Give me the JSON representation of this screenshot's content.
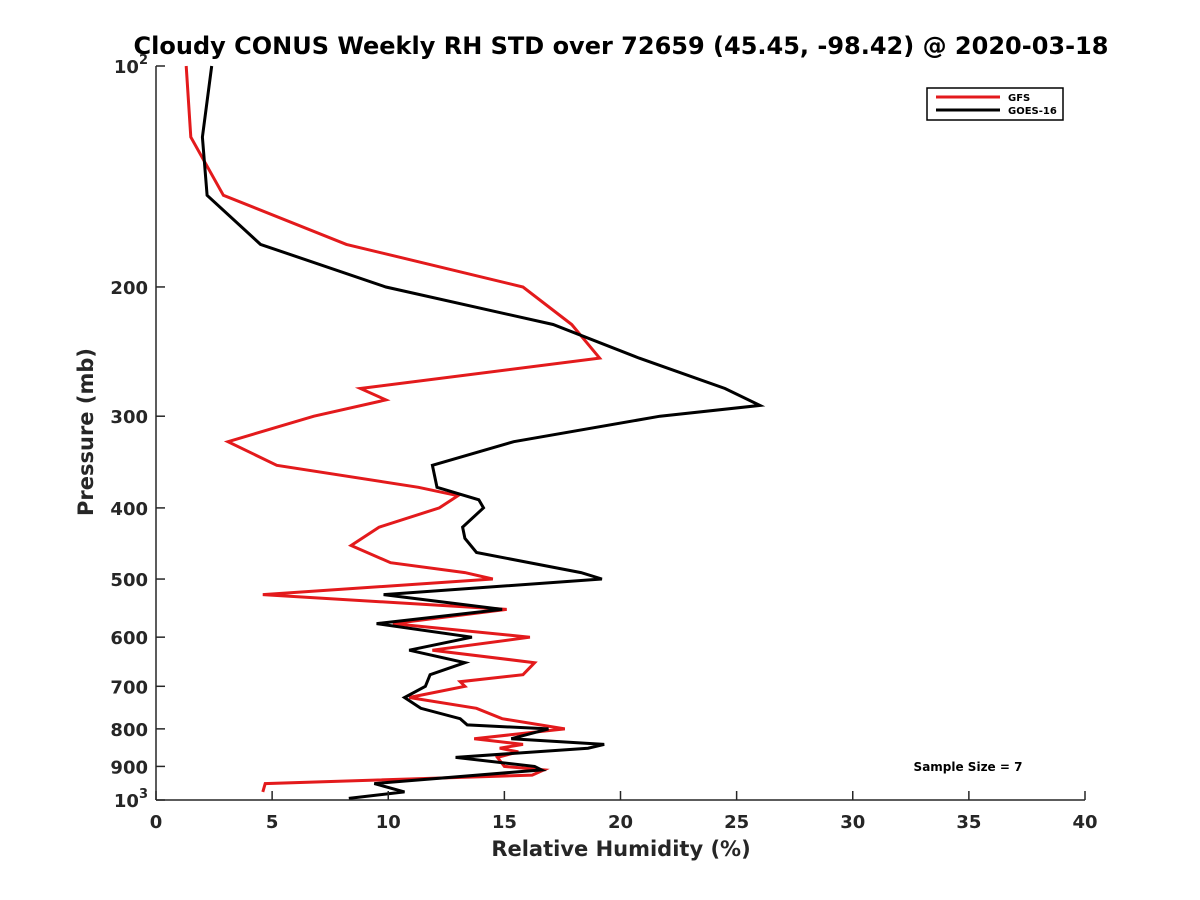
{
  "chart_data": {
    "type": "line",
    "title": "Cloudy CONUS Weekly RH STD over 72659 (45.45, -98.42) @ 2020-03-18",
    "xlabel": "Relative Humidity (%)",
    "ylabel": "Pressure (mb)",
    "xlim": [
      0,
      40
    ],
    "ylim": [
      100,
      1000
    ],
    "y_scale": "log",
    "y_reversed": true,
    "grid": false,
    "legend_position": "top-right",
    "x_ticks": [
      "0",
      "5",
      "10",
      "15",
      "20",
      "25",
      "30",
      "35",
      "40"
    ],
    "y_ticks": [
      {
        "value": 100,
        "base": "10",
        "exp": "2"
      },
      {
        "value": 200,
        "label": "200"
      },
      {
        "value": 300,
        "label": "300"
      },
      {
        "value": 400,
        "label": "400"
      },
      {
        "value": 500,
        "label": "500"
      },
      {
        "value": 600,
        "label": "600"
      },
      {
        "value": 700,
        "label": "700"
      },
      {
        "value": 800,
        "label": "800"
      },
      {
        "value": 900,
        "label": "900"
      },
      {
        "value": 1000,
        "base": "10",
        "exp": "3"
      }
    ],
    "annotation": "Sample Size = 7",
    "series": [
      {
        "name": "GFS",
        "color": "#e31a1c",
        "points": [
          [
            1.3,
            100
          ],
          [
            1.5,
            125
          ],
          [
            2.9,
            150
          ],
          [
            8.2,
            175
          ],
          [
            15.8,
            200
          ],
          [
            17.9,
            225
          ],
          [
            19.1,
            250
          ],
          [
            8.8,
            275
          ],
          [
            9.9,
            285
          ],
          [
            6.8,
            300
          ],
          [
            3.1,
            325
          ],
          [
            5.2,
            350
          ],
          [
            11.3,
            375
          ],
          [
            13.0,
            385
          ],
          [
            12.2,
            400
          ],
          [
            9.6,
            425
          ],
          [
            8.4,
            450
          ],
          [
            10.1,
            475
          ],
          [
            13.3,
            490
          ],
          [
            14.5,
            500
          ],
          [
            4.6,
            525
          ],
          [
            15.1,
            550
          ],
          [
            10.2,
            575
          ],
          [
            16.1,
            600
          ],
          [
            11.9,
            625
          ],
          [
            16.3,
            650
          ],
          [
            15.8,
            675
          ],
          [
            13.1,
            690
          ],
          [
            13.3,
            700
          ],
          [
            10.9,
            725
          ],
          [
            13.8,
            750
          ],
          [
            14.9,
            775
          ],
          [
            17.6,
            800
          ],
          [
            13.7,
            825
          ],
          [
            15.8,
            840
          ],
          [
            14.8,
            850
          ],
          [
            15.6,
            860
          ],
          [
            14.7,
            875
          ],
          [
            15.0,
            900
          ],
          [
            16.7,
            910
          ],
          [
            16.2,
            925
          ],
          [
            4.7,
            950
          ],
          [
            4.6,
            975
          ]
        ]
      },
      {
        "name": "GOES-16",
        "color": "#000000",
        "points": [
          [
            2.4,
            100
          ],
          [
            2.0,
            125
          ],
          [
            2.2,
            150
          ],
          [
            4.5,
            175
          ],
          [
            9.9,
            200
          ],
          [
            17.1,
            225
          ],
          [
            20.8,
            250
          ],
          [
            24.5,
            275
          ],
          [
            26.0,
            290
          ],
          [
            21.7,
            300
          ],
          [
            15.4,
            325
          ],
          [
            11.9,
            350
          ],
          [
            12.1,
            375
          ],
          [
            13.9,
            390
          ],
          [
            14.1,
            400
          ],
          [
            13.2,
            425
          ],
          [
            13.3,
            440
          ],
          [
            13.8,
            460
          ],
          [
            18.3,
            490
          ],
          [
            19.2,
            500
          ],
          [
            9.8,
            525
          ],
          [
            14.9,
            550
          ],
          [
            9.5,
            575
          ],
          [
            13.6,
            600
          ],
          [
            10.9,
            625
          ],
          [
            13.3,
            650
          ],
          [
            11.8,
            675
          ],
          [
            11.6,
            700
          ],
          [
            10.7,
            725
          ],
          [
            11.4,
            750
          ],
          [
            13.1,
            775
          ],
          [
            13.4,
            790
          ],
          [
            16.9,
            800
          ],
          [
            15.3,
            825
          ],
          [
            19.3,
            840
          ],
          [
            18.6,
            850
          ],
          [
            12.9,
            875
          ],
          [
            16.3,
            900
          ],
          [
            16.6,
            910
          ],
          [
            9.4,
            950
          ],
          [
            10.7,
            975
          ],
          [
            8.3,
            995
          ]
        ]
      }
    ]
  }
}
